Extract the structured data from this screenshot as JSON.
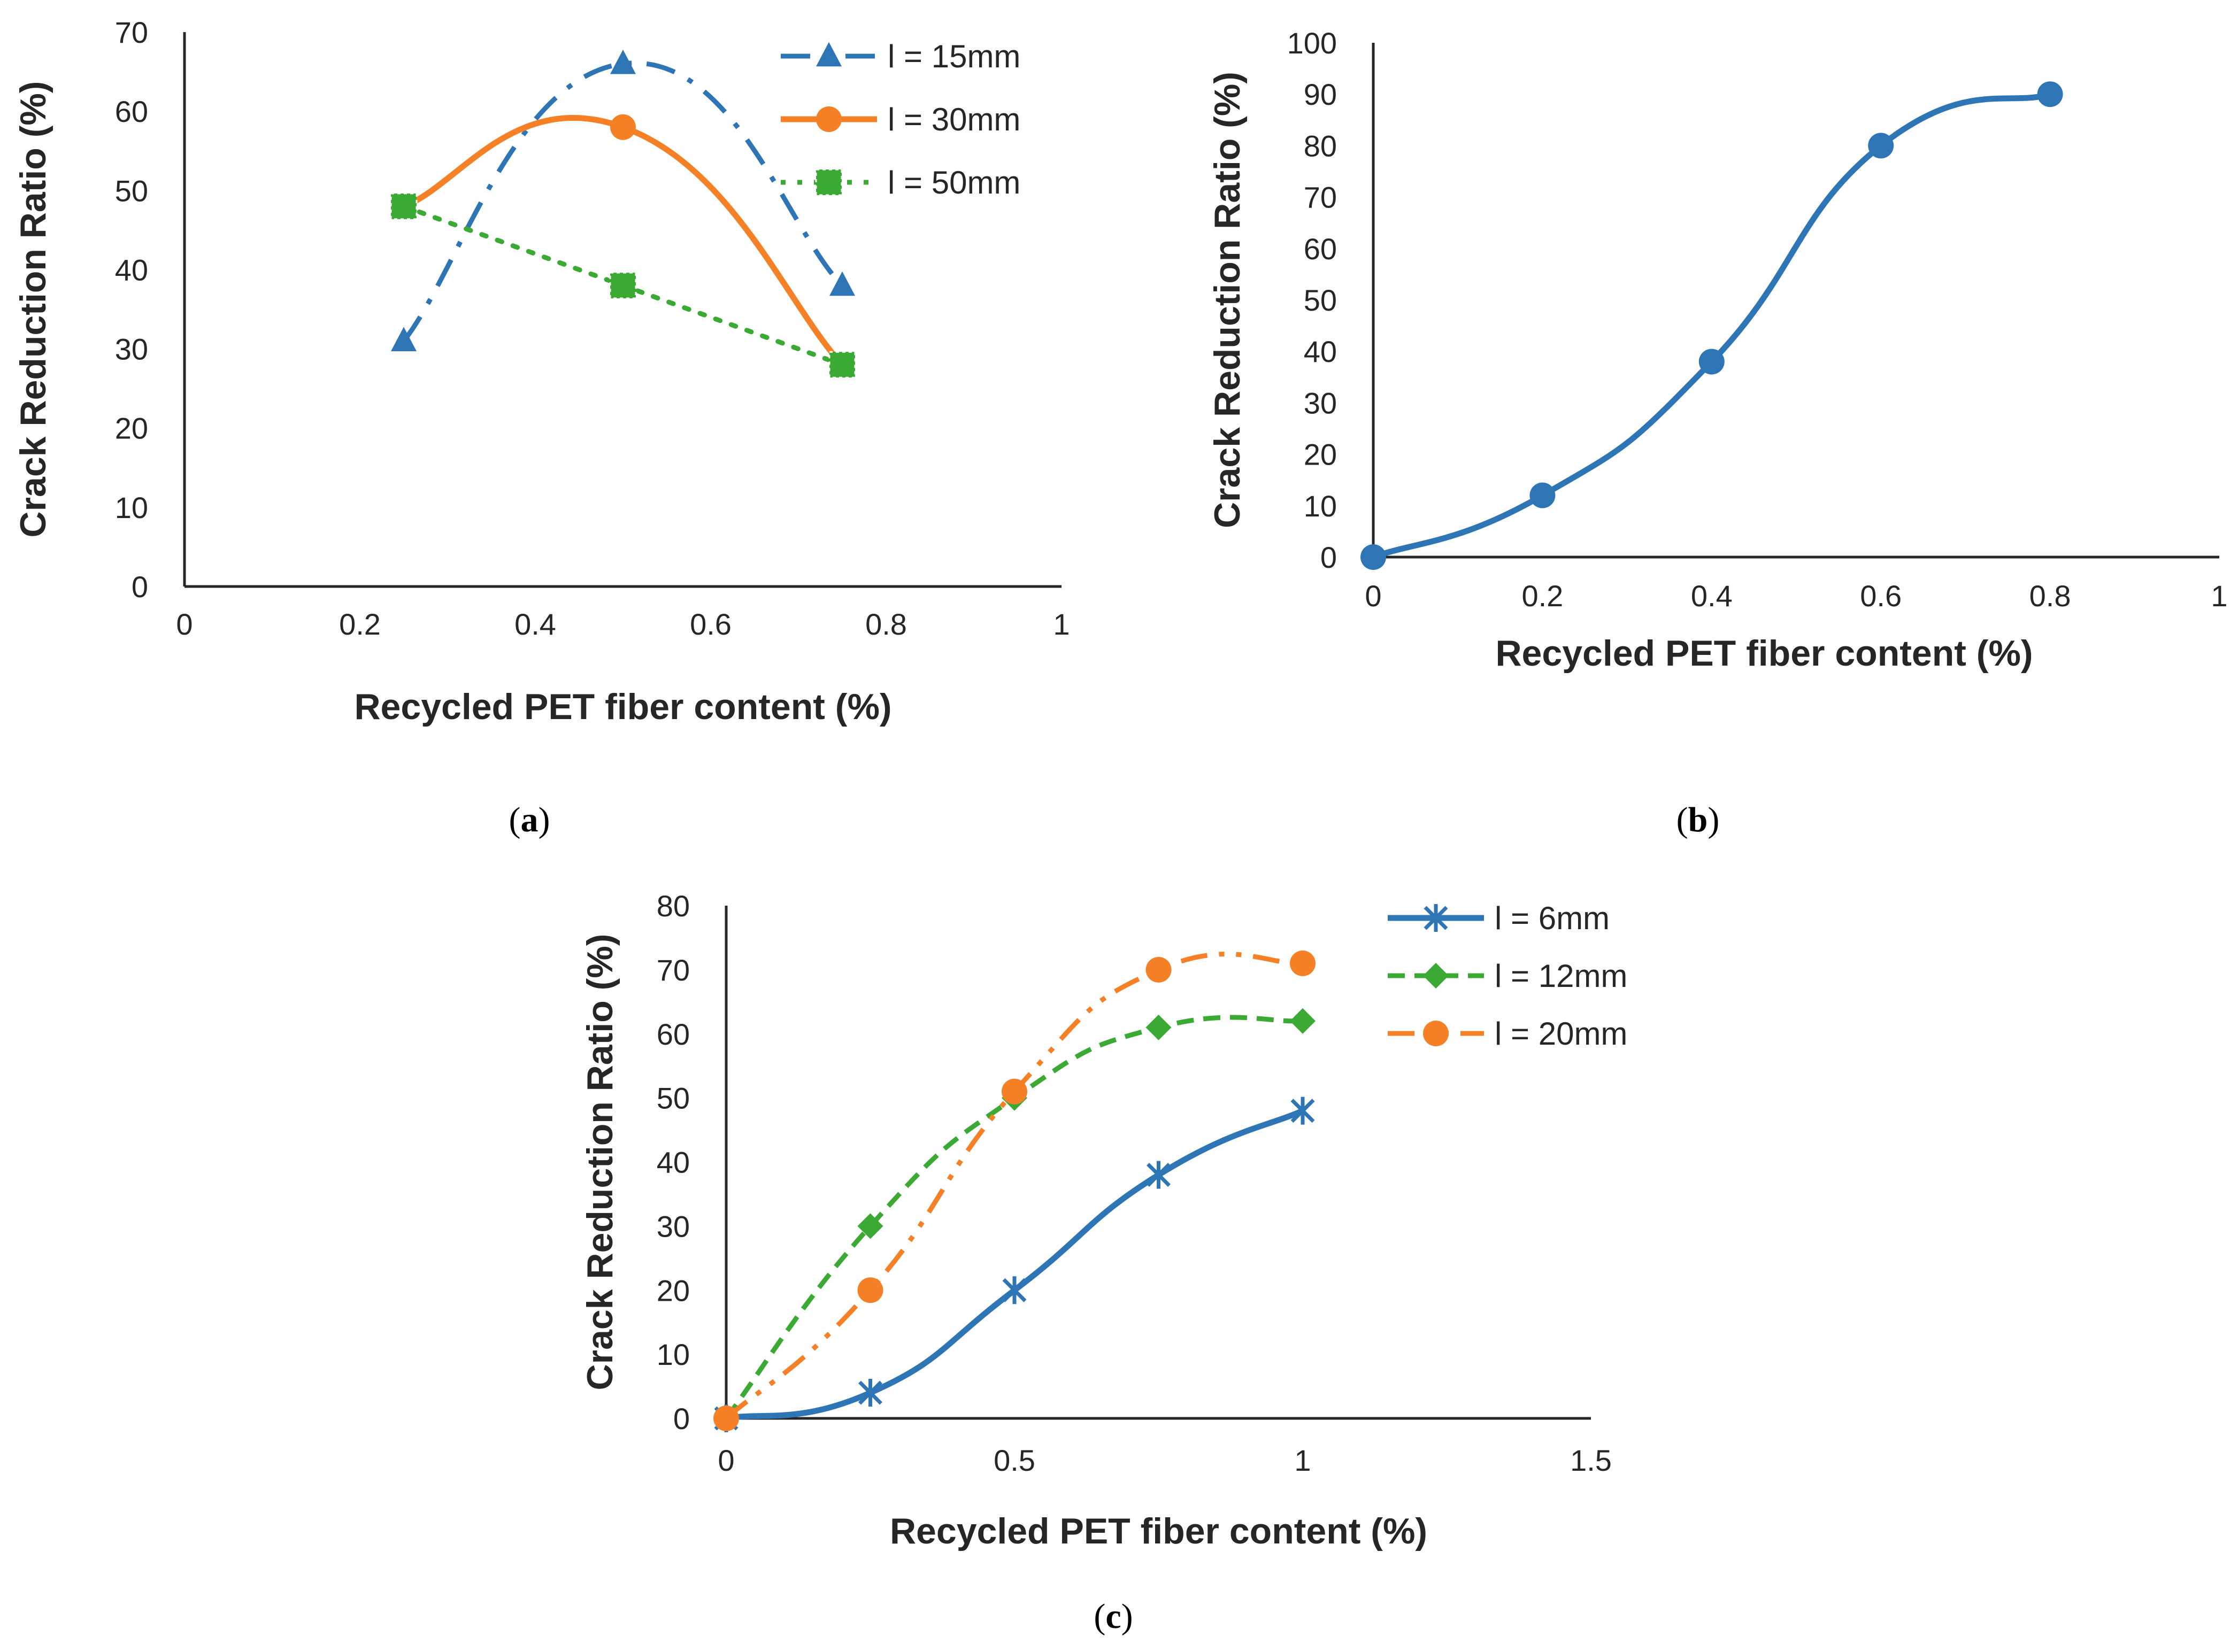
{
  "colors": {
    "blue": "#2E75B6",
    "orange": "#F58025",
    "green": "#3BAA34",
    "axis": "#262626"
  },
  "chart_data": [
    {
      "id": "a",
      "type": "line",
      "caption": "a",
      "xlabel": "Recycled PET fiber content (%)",
      "ylabel": "Crack Reduction Ratio (%)",
      "xlim": [
        0,
        1
      ],
      "ylim": [
        0,
        70
      ],
      "xticks": [
        0,
        0.2,
        0.4,
        0.6,
        0.8,
        1
      ],
      "yticks": [
        0,
        10,
        20,
        30,
        40,
        50,
        60,
        70
      ],
      "grid": false,
      "legend_position": "top-right",
      "series": [
        {
          "name": "l = 15mm",
          "color": "blue",
          "style": "dash-dot",
          "marker": "triangle",
          "smooth": true,
          "x": [
            0.25,
            0.5,
            0.75
          ],
          "y": [
            31,
            66,
            38
          ]
        },
        {
          "name": "l = 30mm",
          "color": "orange",
          "style": "solid",
          "marker": "circle",
          "smooth": true,
          "x": [
            0.25,
            0.5,
            0.75
          ],
          "y": [
            48,
            58,
            28
          ]
        },
        {
          "name": "l = 50mm",
          "color": "green",
          "style": "dotted",
          "marker": "square",
          "smooth": false,
          "x": [
            0.25,
            0.5,
            0.75
          ],
          "y": [
            48,
            38,
            28
          ]
        }
      ]
    },
    {
      "id": "b",
      "type": "line",
      "caption": "b",
      "xlabel": "Recycled PET fiber content (%)",
      "ylabel": "Crack Reduction Ratio (%)",
      "xlim": [
        0,
        1
      ],
      "ylim": [
        0,
        100
      ],
      "xticks": [
        0,
        0.2,
        0.4,
        0.6,
        0.8,
        1
      ],
      "yticks": [
        0,
        10,
        20,
        30,
        40,
        50,
        60,
        70,
        80,
        90,
        100
      ],
      "grid": false,
      "legend_position": "none",
      "series": [
        {
          "name": "",
          "color": "blue",
          "style": "solid",
          "marker": "circle",
          "smooth": true,
          "x": [
            0,
            0.2,
            0.4,
            0.6,
            0.8
          ],
          "y": [
            0,
            12,
            38,
            80,
            90
          ]
        }
      ]
    },
    {
      "id": "c",
      "type": "line",
      "caption": "c",
      "xlabel": "Recycled PET fiber content (%)",
      "ylabel": "Crack Reduction Ratio (%)",
      "xlim": [
        0,
        1.5
      ],
      "ylim": [
        0,
        80
      ],
      "xticks": [
        0,
        0.5,
        1,
        1.5
      ],
      "yticks": [
        0,
        10,
        20,
        30,
        40,
        50,
        60,
        70,
        80
      ],
      "grid": false,
      "legend_position": "top-right",
      "series": [
        {
          "name": "l = 6mm",
          "color": "blue",
          "style": "solid",
          "marker": "star",
          "smooth": true,
          "x": [
            0,
            0.25,
            0.5,
            0.75,
            1
          ],
          "y": [
            0,
            4,
            20,
            38,
            48
          ]
        },
        {
          "name": "l = 12mm",
          "color": "green",
          "style": "dashed",
          "marker": "diamond",
          "smooth": true,
          "x": [
            0,
            0.25,
            0.5,
            0.75,
            1
          ],
          "y": [
            0,
            30,
            50,
            61,
            62
          ]
        },
        {
          "name": "l = 20mm",
          "color": "orange",
          "style": "dash-dot-dot",
          "marker": "circle",
          "smooth": true,
          "x": [
            0,
            0.25,
            0.5,
            0.75,
            1
          ],
          "y": [
            0,
            20,
            51,
            70,
            71
          ]
        }
      ]
    }
  ]
}
